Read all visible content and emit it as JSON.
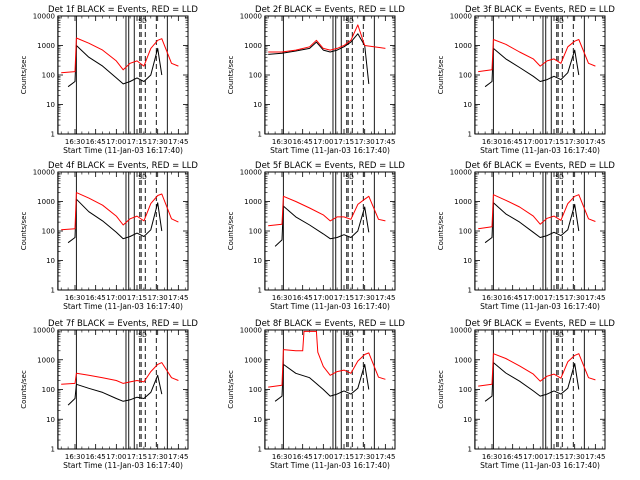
{
  "figure": {
    "ylabel": "Counts/sec",
    "y_tick_labels": [
      "1",
      "10",
      "100",
      "1000",
      "10000"
    ],
    "x_tick_labels": [
      "16:30",
      "16:45",
      "17:00",
      "17:15",
      "17:30",
      "17:45"
    ],
    "colors": {
      "events": "#000000",
      "lld": "#ff0000"
    }
  },
  "chart_data": [
    {
      "type": "line",
      "title": "Det 1f BLACK = Events, RED = LLD",
      "xlabel": "Start Time (11-Jan-03 16:17:40)",
      "x_tick_labels": [
        "16:30",
        "16:45",
        "17:00",
        "17:15",
        "17:30",
        "17:45"
      ],
      "ylabel": "Counts/sec",
      "ylim": [
        1,
        10000
      ],
      "yscale": "log",
      "markers": [
        "SD"
      ],
      "series": [
        {
          "name": "Events",
          "color": "#000000",
          "x": [
            "16:25",
            "16:30",
            "16:31",
            "16:40",
            "16:50",
            "17:00",
            "17:05",
            "17:10",
            "17:15",
            "17:20",
            "17:25",
            "17:30",
            "17:33"
          ],
          "values": [
            40,
            60,
            1000,
            400,
            200,
            80,
            50,
            60,
            80,
            60,
            100,
            800,
            100
          ]
        },
        {
          "name": "LLD",
          "color": "#ff0000",
          "x": [
            "16:20",
            "16:30",
            "16:31",
            "16:40",
            "16:50",
            "17:00",
            "17:05",
            "17:10",
            "17:15",
            "17:20",
            "17:25",
            "17:30",
            "17:33",
            "17:40",
            "17:45"
          ],
          "values": [
            120,
            130,
            1800,
            1200,
            700,
            300,
            150,
            250,
            300,
            200,
            800,
            1500,
            1700,
            250,
            200
          ]
        }
      ]
    },
    {
      "type": "line",
      "title": "Det 2f BLACK = Events, RED = LLD",
      "xlabel": "Start Time (11-Jan-03 16:17:40)",
      "x_tick_labels": [
        "16:30",
        "16:45",
        "17:00",
        "17:15",
        "17:30",
        "17:45"
      ],
      "ylabel": "Counts/sec",
      "ylim": [
        1,
        10000
      ],
      "yscale": "log",
      "markers": [
        "SD"
      ],
      "series": [
        {
          "name": "Events",
          "color": "#000000",
          "x": [
            "16:20",
            "16:30",
            "16:40",
            "16:50",
            "16:55",
            "17:00",
            "17:05",
            "17:10",
            "17:15",
            "17:20",
            "17:25",
            "17:30",
            "17:33"
          ],
          "values": [
            500,
            550,
            650,
            800,
            1300,
            700,
            600,
            700,
            900,
            1300,
            2500,
            1000,
            50
          ]
        },
        {
          "name": "LLD",
          "color": "#ff0000",
          "x": [
            "16:20",
            "16:30",
            "16:40",
            "16:50",
            "16:55",
            "17:00",
            "17:05",
            "17:10",
            "17:15",
            "17:20",
            "17:25",
            "17:30",
            "17:45"
          ],
          "values": [
            600,
            600,
            700,
            900,
            1500,
            800,
            700,
            800,
            1000,
            1500,
            5000,
            1000,
            800
          ]
        }
      ]
    },
    {
      "type": "line",
      "title": "Det 3f BLACK = Events, RED = LLD",
      "xlabel": "Start Time (11-Jan-03 16:17:40)",
      "x_tick_labels": [
        "16:30",
        "16:45",
        "17:00",
        "17:15",
        "17:30",
        "17:45"
      ],
      "ylabel": "Counts/sec",
      "ylim": [
        1,
        10000
      ],
      "yscale": "log",
      "markers": [
        "SD"
      ],
      "series": [
        {
          "name": "Events",
          "color": "#000000",
          "x": [
            "16:25",
            "16:30",
            "16:31",
            "16:40",
            "16:50",
            "17:00",
            "17:05",
            "17:10",
            "17:15",
            "17:20",
            "17:25",
            "17:30",
            "17:33"
          ],
          "values": [
            40,
            60,
            800,
            350,
            180,
            90,
            60,
            70,
            90,
            70,
            120,
            700,
            100
          ]
        },
        {
          "name": "LLD",
          "color": "#ff0000",
          "x": [
            "16:20",
            "16:30",
            "16:31",
            "16:40",
            "16:50",
            "17:00",
            "17:05",
            "17:10",
            "17:15",
            "17:20",
            "17:25",
            "17:30",
            "17:33",
            "17:40",
            "17:45"
          ],
          "values": [
            130,
            150,
            1600,
            1100,
            600,
            350,
            200,
            300,
            350,
            250,
            900,
            1400,
            1600,
            250,
            200
          ]
        }
      ]
    },
    {
      "type": "line",
      "title": "Det 4f BLACK = Events, RED = LLD",
      "xlabel": "Start Time (11-Jan-03 16:17:40)",
      "x_tick_labels": [
        "16:30",
        "16:45",
        "17:00",
        "17:15",
        "17:30",
        "17:45"
      ],
      "ylabel": "Counts/sec",
      "ylim": [
        1,
        10000
      ],
      "yscale": "log",
      "markers": [
        "SD"
      ],
      "series": [
        {
          "name": "Events",
          "color": "#000000",
          "x": [
            "16:25",
            "16:30",
            "16:31",
            "16:40",
            "16:50",
            "17:00",
            "17:05",
            "17:10",
            "17:15",
            "17:20",
            "17:25",
            "17:30",
            "17:33"
          ],
          "values": [
            40,
            60,
            1200,
            450,
            220,
            90,
            55,
            65,
            85,
            65,
            110,
            900,
            100
          ]
        },
        {
          "name": "LLD",
          "color": "#ff0000",
          "x": [
            "16:20",
            "16:30",
            "16:31",
            "16:40",
            "16:50",
            "17:00",
            "17:05",
            "17:10",
            "17:15",
            "17:20",
            "17:25",
            "17:30",
            "17:33",
            "17:40",
            "17:45"
          ],
          "values": [
            110,
            120,
            2000,
            1300,
            750,
            320,
            160,
            260,
            320,
            220,
            850,
            1600,
            1800,
            260,
            200
          ]
        }
      ]
    },
    {
      "type": "line",
      "title": "Det 5f BLACK = Events, RED = LLD",
      "xlabel": "Start Time (11-Jan-03 16:17:40)",
      "x_tick_labels": [
        "16:30",
        "16:45",
        "17:00",
        "17:15",
        "17:30",
        "17:45"
      ],
      "ylabel": "Counts/sec",
      "ylim": [
        1,
        10000
      ],
      "yscale": "log",
      "markers": [
        "SD"
      ],
      "series": [
        {
          "name": "Events",
          "color": "#000000",
          "x": [
            "16:25",
            "16:30",
            "16:31",
            "16:40",
            "16:50",
            "17:00",
            "17:05",
            "17:10",
            "17:15",
            "17:20",
            "17:25",
            "17:30",
            "17:33"
          ],
          "values": [
            30,
            50,
            700,
            300,
            160,
            80,
            55,
            60,
            75,
            60,
            100,
            650,
            90
          ]
        },
        {
          "name": "LLD",
          "color": "#ff0000",
          "x": [
            "16:20",
            "16:30",
            "16:31",
            "16:40",
            "16:50",
            "17:00",
            "17:05",
            "17:10",
            "17:15",
            "17:20",
            "17:25",
            "17:30",
            "17:33",
            "17:40",
            "17:45"
          ],
          "values": [
            150,
            170,
            1500,
            1000,
            600,
            350,
            220,
            300,
            300,
            250,
            800,
            1200,
            1500,
            250,
            220
          ]
        }
      ]
    },
    {
      "type": "line",
      "title": "Det 6f BLACK = Events, RED = LLD",
      "xlabel": "Start Time (11-Jan-03 16:17:40)",
      "x_tick_labels": [
        "16:30",
        "16:45",
        "17:00",
        "17:15",
        "17:30",
        "17:45"
      ],
      "ylabel": "Counts/sec",
      "ylim": [
        1,
        10000
      ],
      "yscale": "log",
      "markers": [
        "SD"
      ],
      "series": [
        {
          "name": "Events",
          "color": "#000000",
          "x": [
            "16:25",
            "16:30",
            "16:31",
            "16:40",
            "16:50",
            "17:00",
            "17:05",
            "17:10",
            "17:15",
            "17:20",
            "17:25",
            "17:30",
            "17:33"
          ],
          "values": [
            40,
            60,
            900,
            380,
            200,
            90,
            60,
            70,
            90,
            70,
            110,
            800,
            100
          ]
        },
        {
          "name": "LLD",
          "color": "#ff0000",
          "x": [
            "16:20",
            "16:30",
            "16:31",
            "16:40",
            "16:50",
            "17:00",
            "17:05",
            "17:10",
            "17:15",
            "17:20",
            "17:25",
            "17:30",
            "17:33",
            "17:40",
            "17:45"
          ],
          "values": [
            120,
            140,
            1700,
            1100,
            650,
            320,
            170,
            270,
            320,
            230,
            850,
            1500,
            1700,
            260,
            210
          ]
        }
      ]
    },
    {
      "type": "line",
      "title": "Det 7f BLACK = Events, RED = LLD",
      "xlabel": "Start Time (11-Jan-03 16:17:40)",
      "x_tick_labels": [
        "16:30",
        "16:45",
        "17:00",
        "17:15",
        "17:30",
        "17:45"
      ],
      "ylabel": "Counts/sec",
      "ylim": [
        1,
        10000
      ],
      "yscale": "log",
      "markers": [
        "SD"
      ],
      "series": [
        {
          "name": "Events",
          "color": "#000000",
          "x": [
            "16:25",
            "16:30",
            "16:31",
            "16:40",
            "16:50",
            "17:00",
            "17:05",
            "17:10",
            "17:15",
            "17:20",
            "17:25",
            "17:30",
            "17:33"
          ],
          "values": [
            30,
            50,
            150,
            110,
            80,
            50,
            40,
            45,
            55,
            50,
            80,
            300,
            70
          ]
        },
        {
          "name": "LLD",
          "color": "#ff0000",
          "x": [
            "16:20",
            "16:30",
            "16:31",
            "16:40",
            "16:50",
            "17:00",
            "17:05",
            "17:10",
            "17:15",
            "17:20",
            "17:25",
            "17:30",
            "17:33",
            "17:40",
            "17:45"
          ],
          "values": [
            150,
            160,
            350,
            300,
            250,
            200,
            160,
            180,
            200,
            180,
            400,
            700,
            800,
            250,
            200
          ]
        }
      ]
    },
    {
      "type": "line",
      "title": "Det 8f BLACK = Events, RED = LLD",
      "xlabel": "Start Time (11-Jan-03 16:17:40)",
      "x_tick_labels": [
        "16:30",
        "16:45",
        "17:00",
        "17:15",
        "17:30",
        "17:45"
      ],
      "ylabel": "Counts/sec",
      "ylim": [
        1,
        10000
      ],
      "yscale": "log",
      "markers": [
        "SD"
      ],
      "series": [
        {
          "name": "Events",
          "color": "#000000",
          "x": [
            "16:25",
            "16:30",
            "16:31",
            "16:40",
            "16:50",
            "17:00",
            "17:05",
            "17:10",
            "17:15",
            "17:20",
            "17:25",
            "17:30",
            "17:33"
          ],
          "values": [
            40,
            60,
            700,
            350,
            250,
            100,
            60,
            70,
            90,
            70,
            110,
            700,
            100
          ]
        },
        {
          "name": "LLD",
          "color": "#ff0000",
          "x": [
            "16:20",
            "16:30",
            "16:31",
            "16:40",
            "16:45",
            "16:46",
            "16:55",
            "16:56",
            "17:00",
            "17:05",
            "17:10",
            "17:15",
            "17:20",
            "17:25",
            "17:30",
            "17:33",
            "17:40",
            "17:45"
          ],
          "values": [
            120,
            140,
            2200,
            2000,
            2000,
            9000,
            9000,
            1800,
            600,
            300,
            400,
            450,
            350,
            900,
            1500,
            1700,
            260,
            220
          ]
        }
      ]
    },
    {
      "type": "line",
      "title": "Det 9f BLACK = Events, RED = LLD",
      "xlabel": "Start Time (11-Jan-03 16:17:40)",
      "x_tick_labels": [
        "16:30",
        "16:45",
        "17:00",
        "17:15",
        "17:30",
        "17:45"
      ],
      "ylabel": "Counts/sec",
      "ylim": [
        1,
        10000
      ],
      "yscale": "log",
      "markers": [
        "SD"
      ],
      "series": [
        {
          "name": "Events",
          "color": "#000000",
          "x": [
            "16:25",
            "16:30",
            "16:31",
            "16:40",
            "16:50",
            "17:00",
            "17:05",
            "17:10",
            "17:15",
            "17:20",
            "17:25",
            "17:30",
            "17:33"
          ],
          "values": [
            40,
            60,
            800,
            360,
            190,
            90,
            60,
            70,
            90,
            70,
            110,
            750,
            100
          ]
        },
        {
          "name": "LLD",
          "color": "#ff0000",
          "x": [
            "16:20",
            "16:30",
            "16:31",
            "16:40",
            "16:50",
            "17:00",
            "17:05",
            "17:10",
            "17:15",
            "17:20",
            "17:25",
            "17:30",
            "17:33",
            "17:40",
            "17:45"
          ],
          "values": [
            130,
            150,
            1600,
            1100,
            620,
            330,
            190,
            280,
            330,
            240,
            850,
            1400,
            1600,
            250,
            210
          ]
        }
      ]
    }
  ]
}
